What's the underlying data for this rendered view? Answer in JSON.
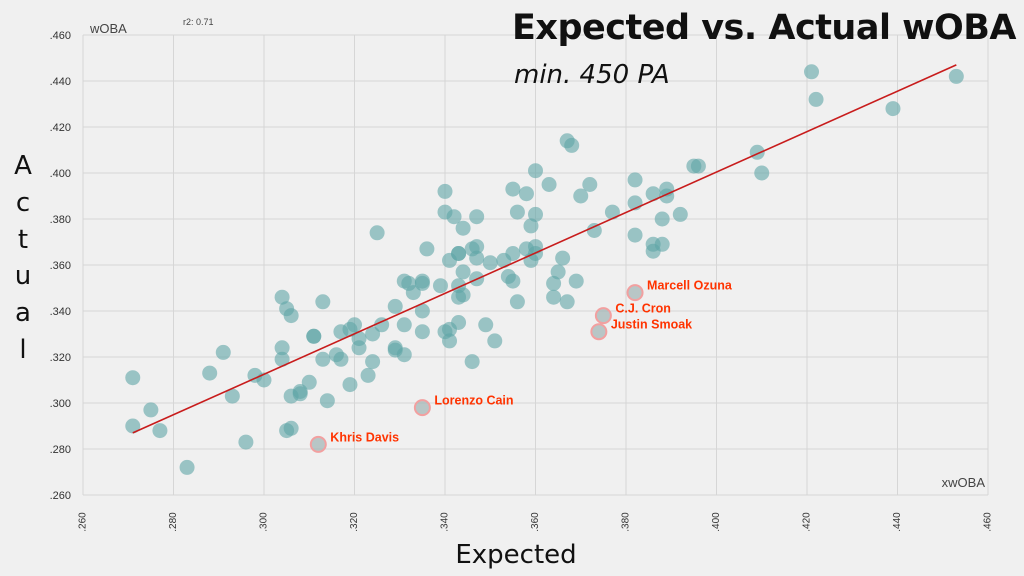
{
  "title": "Expected vs. Actual wOBA",
  "subtitle": "min. 450 PA",
  "xlabel": "Expected",
  "ylabel": "Actual",
  "chart_data": {
    "type": "scatter",
    "series_label_x": "xwOBA",
    "series_label_y": "wOBA",
    "r2_label": "r2: 0.71",
    "xlim": [
      0.26,
      0.46
    ],
    "ylim": [
      0.26,
      0.46
    ],
    "x_ticks": [
      ".260",
      ".280",
      ".300",
      ".320",
      ".340",
      ".360",
      ".380",
      ".400",
      ".420",
      ".440",
      ".460"
    ],
    "y_ticks": [
      ".260",
      ".280",
      ".300",
      ".320",
      ".340",
      ".360",
      ".380",
      ".400",
      ".420",
      ".440",
      ".460"
    ],
    "grid": true,
    "colors": {
      "point": "#5fa5a6",
      "highlight": "#f2a0a0",
      "trend": "#c81c1c",
      "label": "#ff3300"
    },
    "trendline": {
      "x": [
        0.271,
        0.453
      ],
      "y": [
        0.287,
        0.447
      ]
    },
    "points": [
      [
        0.271,
        0.311
      ],
      [
        0.271,
        0.29
      ],
      [
        0.275,
        0.297
      ],
      [
        0.277,
        0.288
      ],
      [
        0.283,
        0.272
      ],
      [
        0.288,
        0.313
      ],
      [
        0.291,
        0.322
      ],
      [
        0.293,
        0.303
      ],
      [
        0.296,
        0.283
      ],
      [
        0.298,
        0.312
      ],
      [
        0.3,
        0.31
      ],
      [
        0.304,
        0.346
      ],
      [
        0.305,
        0.341
      ],
      [
        0.306,
        0.338
      ],
      [
        0.304,
        0.324
      ],
      [
        0.304,
        0.319
      ],
      [
        0.305,
        0.288
      ],
      [
        0.306,
        0.289
      ],
      [
        0.306,
        0.303
      ],
      [
        0.308,
        0.305
      ],
      [
        0.308,
        0.304
      ],
      [
        0.31,
        0.309
      ],
      [
        0.311,
        0.329
      ],
      [
        0.311,
        0.329
      ],
      [
        0.313,
        0.344
      ],
      [
        0.313,
        0.319
      ],
      [
        0.314,
        0.301
      ],
      [
        0.316,
        0.321
      ],
      [
        0.317,
        0.319
      ],
      [
        0.317,
        0.331
      ],
      [
        0.319,
        0.308
      ],
      [
        0.319,
        0.332
      ],
      [
        0.32,
        0.334
      ],
      [
        0.321,
        0.328
      ],
      [
        0.321,
        0.324
      ],
      [
        0.323,
        0.312
      ],
      [
        0.324,
        0.318
      ],
      [
        0.324,
        0.33
      ],
      [
        0.325,
        0.374
      ],
      [
        0.326,
        0.334
      ],
      [
        0.329,
        0.323
      ],
      [
        0.329,
        0.324
      ],
      [
        0.329,
        0.342
      ],
      [
        0.331,
        0.321
      ],
      [
        0.331,
        0.334
      ],
      [
        0.331,
        0.353
      ],
      [
        0.332,
        0.352
      ],
      [
        0.333,
        0.348
      ],
      [
        0.335,
        0.353
      ],
      [
        0.335,
        0.352
      ],
      [
        0.335,
        0.34
      ],
      [
        0.335,
        0.331
      ],
      [
        0.336,
        0.367
      ],
      [
        0.339,
        0.351
      ],
      [
        0.34,
        0.392
      ],
      [
        0.34,
        0.383
      ],
      [
        0.34,
        0.331
      ],
      [
        0.341,
        0.332
      ],
      [
        0.341,
        0.327
      ],
      [
        0.341,
        0.362
      ],
      [
        0.342,
        0.381
      ],
      [
        0.343,
        0.365
      ],
      [
        0.343,
        0.365
      ],
      [
        0.343,
        0.351
      ],
      [
        0.343,
        0.346
      ],
      [
        0.343,
        0.335
      ],
      [
        0.344,
        0.376
      ],
      [
        0.344,
        0.357
      ],
      [
        0.344,
        0.347
      ],
      [
        0.346,
        0.318
      ],
      [
        0.346,
        0.367
      ],
      [
        0.347,
        0.381
      ],
      [
        0.347,
        0.368
      ],
      [
        0.347,
        0.363
      ],
      [
        0.347,
        0.354
      ],
      [
        0.349,
        0.334
      ],
      [
        0.35,
        0.361
      ],
      [
        0.351,
        0.327
      ],
      [
        0.353,
        0.362
      ],
      [
        0.354,
        0.355
      ],
      [
        0.355,
        0.393
      ],
      [
        0.355,
        0.365
      ],
      [
        0.355,
        0.353
      ],
      [
        0.356,
        0.383
      ],
      [
        0.356,
        0.344
      ],
      [
        0.358,
        0.391
      ],
      [
        0.358,
        0.367
      ],
      [
        0.359,
        0.377
      ],
      [
        0.359,
        0.362
      ],
      [
        0.36,
        0.401
      ],
      [
        0.36,
        0.382
      ],
      [
        0.36,
        0.368
      ],
      [
        0.36,
        0.365
      ],
      [
        0.363,
        0.395
      ],
      [
        0.364,
        0.352
      ],
      [
        0.364,
        0.346
      ],
      [
        0.365,
        0.357
      ],
      [
        0.366,
        0.363
      ],
      [
        0.367,
        0.414
      ],
      [
        0.367,
        0.344
      ],
      [
        0.368,
        0.412
      ],
      [
        0.369,
        0.353
      ],
      [
        0.37,
        0.39
      ],
      [
        0.372,
        0.395
      ],
      [
        0.373,
        0.375
      ],
      [
        0.377,
        0.383
      ],
      [
        0.382,
        0.397
      ],
      [
        0.382,
        0.387
      ],
      [
        0.382,
        0.373
      ],
      [
        0.386,
        0.391
      ],
      [
        0.386,
        0.369
      ],
      [
        0.386,
        0.366
      ],
      [
        0.388,
        0.38
      ],
      [
        0.388,
        0.369
      ],
      [
        0.389,
        0.393
      ],
      [
        0.389,
        0.39
      ],
      [
        0.392,
        0.382
      ],
      [
        0.395,
        0.403
      ],
      [
        0.396,
        0.403
      ],
      [
        0.409,
        0.409
      ],
      [
        0.41,
        0.4
      ],
      [
        0.421,
        0.444
      ],
      [
        0.422,
        0.432
      ],
      [
        0.439,
        0.428
      ],
      [
        0.453,
        0.442
      ]
    ],
    "highlighted": [
      {
        "name": "Marcell Ozuna",
        "x": 0.382,
        "y": 0.348
      },
      {
        "name": "C.J. Cron",
        "x": 0.375,
        "y": 0.338
      },
      {
        "name": "Justin Smoak",
        "x": 0.374,
        "y": 0.331
      },
      {
        "name": "Lorenzo Cain",
        "x": 0.335,
        "y": 0.298
      },
      {
        "name": "Khris Davis",
        "x": 0.312,
        "y": 0.282
      }
    ]
  }
}
